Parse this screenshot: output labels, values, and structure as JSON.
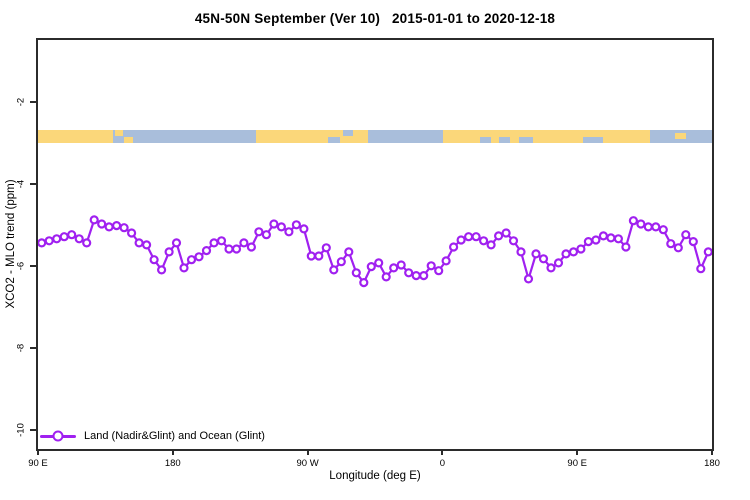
{
  "title": "45N-50N September (Ver 10)   2015-01-01 to 2020-12-18",
  "axes": {
    "x_label": "Longitude (deg E)",
    "y_label": "XCO2 - MLO trend (ppm)"
  },
  "legend": {
    "label": "Land (Nadir&Glint) and Ocean (Glint)"
  },
  "colors": {
    "line": "#A020F0",
    "marker_fill": "#ffffff",
    "land": "#FBD77A",
    "ocean": "#A9BEDB",
    "axis": "#2b2b2b",
    "background": "#ffffff"
  },
  "chart_data": {
    "type": "line",
    "title": "45N-50N September (Ver 10)   2015-01-01 to 2020-12-18",
    "xlabel": "Longitude (deg E)",
    "ylabel": "XCO2 - MLO trend (ppm)",
    "grid": false,
    "legend_position": "bottom-left",
    "x_axis_wrap_note": "longitude axis runs 90E eastward around the globe to 180 (450 deg span)",
    "x_unwrapped_deg_range": [
      90,
      540
    ],
    "ylim": [
      -10.47,
      -0.49
    ],
    "x_ticks": [
      {
        "label": "90 E",
        "deg": 90
      },
      {
        "label": "180",
        "deg": 180
      },
      {
        "label": "90 W",
        "deg": 270
      },
      {
        "label": "0",
        "deg": 360
      },
      {
        "label": "90 E",
        "deg": 450
      },
      {
        "label": "180",
        "deg": 540
      }
    ],
    "y_ticks": [
      {
        "label": "-2",
        "value": -2
      },
      {
        "label": "-4",
        "value": -4
      },
      {
        "label": "-6",
        "value": -6
      },
      {
        "label": "-8",
        "value": -8
      },
      {
        "label": "-10",
        "value": -10
      }
    ],
    "x_start_deg": 92.5,
    "x_step_deg": 5,
    "series": [
      {
        "name": "Land (Nadir&Glint) and Ocean (Glint)",
        "color": "#A020F0",
        "marker": "open-circle",
        "values": [
          -5.44,
          -5.39,
          -5.34,
          -5.29,
          -5.24,
          -5.34,
          -5.44,
          -4.88,
          -4.98,
          -5.05,
          -5.02,
          -5.07,
          -5.2,
          -5.44,
          -5.49,
          -5.85,
          -6.1,
          -5.66,
          -5.44,
          -6.05,
          -5.85,
          -5.78,
          -5.63,
          -5.44,
          -5.39,
          -5.59,
          -5.59,
          -5.44,
          -5.54,
          -5.17,
          -5.24,
          -4.98,
          -5.05,
          -5.17,
          -5.0,
          -5.1,
          -5.76,
          -5.76,
          -5.56,
          -6.1,
          -5.9,
          -5.66,
          -6.17,
          -6.41,
          -6.02,
          -5.93,
          -6.27,
          -6.05,
          -5.98,
          -6.17,
          -6.24,
          -6.24,
          -6.0,
          -6.12,
          -5.88,
          -5.54,
          -5.37,
          -5.29,
          -5.29,
          -5.39,
          -5.49,
          -5.27,
          -5.2,
          -5.39,
          -5.66,
          -6.32,
          -5.71,
          -5.83,
          -6.05,
          -5.93,
          -5.71,
          -5.66,
          -5.59,
          -5.41,
          -5.37,
          -5.27,
          -5.32,
          -5.34,
          -5.54,
          -4.9,
          -4.98,
          -5.05,
          -5.05,
          -5.12,
          -5.46,
          -5.56,
          -5.24,
          -5.41,
          -6.07,
          -5.66
        ]
      }
    ],
    "map_band": {
      "description": "45N-50N world land/ocean strip drawn across the plot",
      "value_center": -2.84,
      "segments": [
        {
          "from": 0.0,
          "to": 0.1113,
          "kind": "land"
        },
        {
          "from": 0.1113,
          "to": 0.3234,
          "kind": "ocean"
        },
        {
          "from": 0.3234,
          "to": 0.4896,
          "kind": "land"
        },
        {
          "from": 0.4896,
          "to": 0.6009,
          "kind": "ocean"
        },
        {
          "from": 0.6009,
          "to": 0.908,
          "kind": "land"
        },
        {
          "from": 0.908,
          "to": 1.0,
          "kind": "ocean"
        }
      ],
      "patches": [
        {
          "from": 0.114,
          "to": 0.126,
          "kind": "land",
          "pos": "top"
        },
        {
          "from": 0.128,
          "to": 0.141,
          "kind": "land",
          "pos": "bottom"
        },
        {
          "from": 0.43,
          "to": 0.448,
          "kind": "ocean",
          "pos": "bottom"
        },
        {
          "from": 0.452,
          "to": 0.468,
          "kind": "ocean",
          "pos": "top"
        },
        {
          "from": 0.656,
          "to": 0.672,
          "kind": "ocean",
          "pos": "bottom"
        },
        {
          "from": 0.684,
          "to": 0.7,
          "kind": "ocean",
          "pos": "bottom"
        },
        {
          "from": 0.714,
          "to": 0.734,
          "kind": "ocean",
          "pos": "bottom"
        },
        {
          "from": 0.809,
          "to": 0.838,
          "kind": "ocean",
          "pos": "bottom"
        },
        {
          "from": 0.945,
          "to": 0.961,
          "kind": "land",
          "pos": "mid"
        }
      ]
    }
  }
}
